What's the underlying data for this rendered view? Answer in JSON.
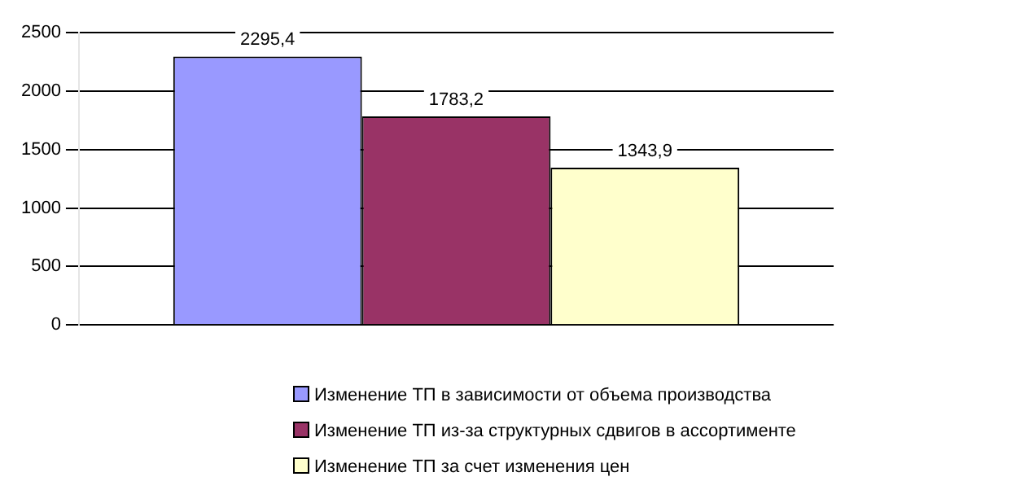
{
  "chart_data": {
    "type": "bar",
    "categories": [
      null
    ],
    "series": [
      {
        "name": "Изменение ТП в зависимости от объема производства",
        "color": "#9999ff",
        "values": [
          2295.4
        ],
        "value_labels": [
          "2295,4"
        ]
      },
      {
        "name": "Изменение ТП из-за структурных сдвигов в ассортименте",
        "color": "#993366",
        "values": [
          1783.2
        ],
        "value_labels": [
          "1783,2"
        ]
      },
      {
        "name": "Изменение ТП за счет изменения цен",
        "color": "#ffffcc",
        "values": [
          1343.9
        ],
        "value_labels": [
          "1343,9"
        ]
      }
    ],
    "ylim": [
      0,
      2500
    ],
    "yticks": [
      0,
      500,
      1000,
      1500,
      2000,
      2500
    ],
    "grid": "y",
    "legend": "bottom"
  }
}
